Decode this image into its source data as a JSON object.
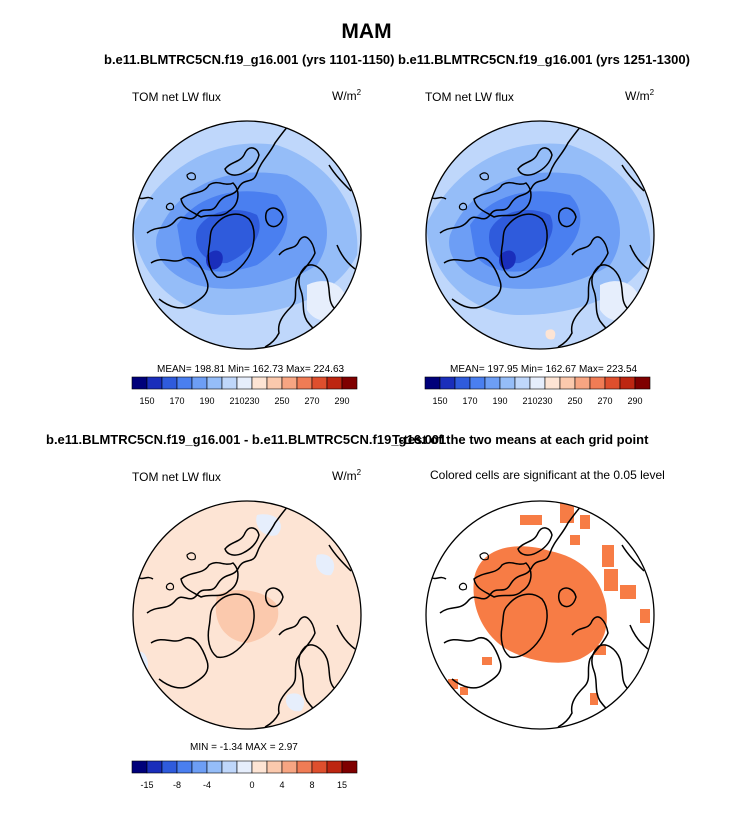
{
  "main_title": "MAM",
  "panel1": {
    "title": "b.e11.BLMTRC5CN.f19_g16.001 (yrs 1101-1150)",
    "left_label": "TOM net LW flux",
    "units": "W/m",
    "units_sup": "2",
    "stats": "MEAN= 198.81  Min= 162.73  Max= 224.63"
  },
  "panel2": {
    "title": "b.e11.BLMTRC5CN.f19_g16.001 (yrs 1251-1300)",
    "left_label": "TOM net LW flux",
    "units": "W/m",
    "units_sup": "2",
    "stats": "MEAN= 197.95  Min= 162.67  Max= 223.54"
  },
  "panel3": {
    "title": "b.e11.BLMTRC5CN.f19_g16.001 - b.e11.BLMTRC5CN.f19_g16.001",
    "left_label": "TOM net LW flux",
    "units": "W/m",
    "units_sup": "2",
    "stats": "MIN =  -1.34  MAX =   2.97"
  },
  "panel4": {
    "title": "T-test of the two means at each grid point",
    "subtitle": "Colored cells are significant at the 0.05 level"
  },
  "colors": {
    "abs_scale": [
      "#00007a",
      "#1a2ebb",
      "#2f5bdc",
      "#4a7ff0",
      "#6d9ef5",
      "#95bdf8",
      "#bfd7fb",
      "#e6eefc",
      "#fde4d4",
      "#fbc9ad",
      "#f7a582",
      "#f07c55",
      "#de4f2d",
      "#bd2611",
      "#7f0000"
    ],
    "diff_scale": [
      "#00007a",
      "#1a2ebb",
      "#2f5bdc",
      "#4a7ff0",
      "#6d9ef5",
      "#95bdf8",
      "#bfd7fb",
      "#e6eefc",
      "#fde4d4",
      "#fbc9ad",
      "#f7a582",
      "#f07c55",
      "#de4f2d",
      "#bd2611",
      "#7f0000"
    ],
    "significant": "#f77c45"
  },
  "chart_data": [
    {
      "type": "heatmap",
      "projection": "north polar stereographic",
      "title": "b.e11.BLMTRC5CN.f19_g16.001 (yrs 1101-1150)",
      "variable": "TOM net LW flux",
      "units": "W/m2",
      "mean": 198.81,
      "min": 162.73,
      "max": 224.63,
      "colorbar_ticks": [
        "150",
        "170",
        "190",
        "210",
        "230",
        "250",
        "270",
        "290"
      ]
    },
    {
      "type": "heatmap",
      "projection": "north polar stereographic",
      "title": "b.e11.BLMTRC5CN.f19_g16.001 (yrs 1251-1300)",
      "variable": "TOM net LW flux",
      "units": "W/m2",
      "mean": 197.95,
      "min": 162.67,
      "max": 223.54,
      "colorbar_ticks": [
        "150",
        "170",
        "190",
        "210",
        "230",
        "250",
        "270",
        "290"
      ]
    },
    {
      "type": "heatmap",
      "projection": "north polar stereographic",
      "title": "b.e11.BLMTRC5CN.f19_g16.001 - b.e11.BLMTRC5CN.f19_g16.001",
      "variable": "TOM net LW flux",
      "units": "W/m2",
      "min": -1.34,
      "max": 2.97,
      "colorbar_ticks": [
        "-15",
        "-8",
        "-4",
        "0",
        "4",
        "8",
        "15"
      ]
    },
    {
      "type": "heatmap",
      "projection": "north polar stereographic",
      "title": "T-test of the two means at each grid point",
      "subtitle": "Colored cells are significant at the 0.05 level"
    }
  ]
}
